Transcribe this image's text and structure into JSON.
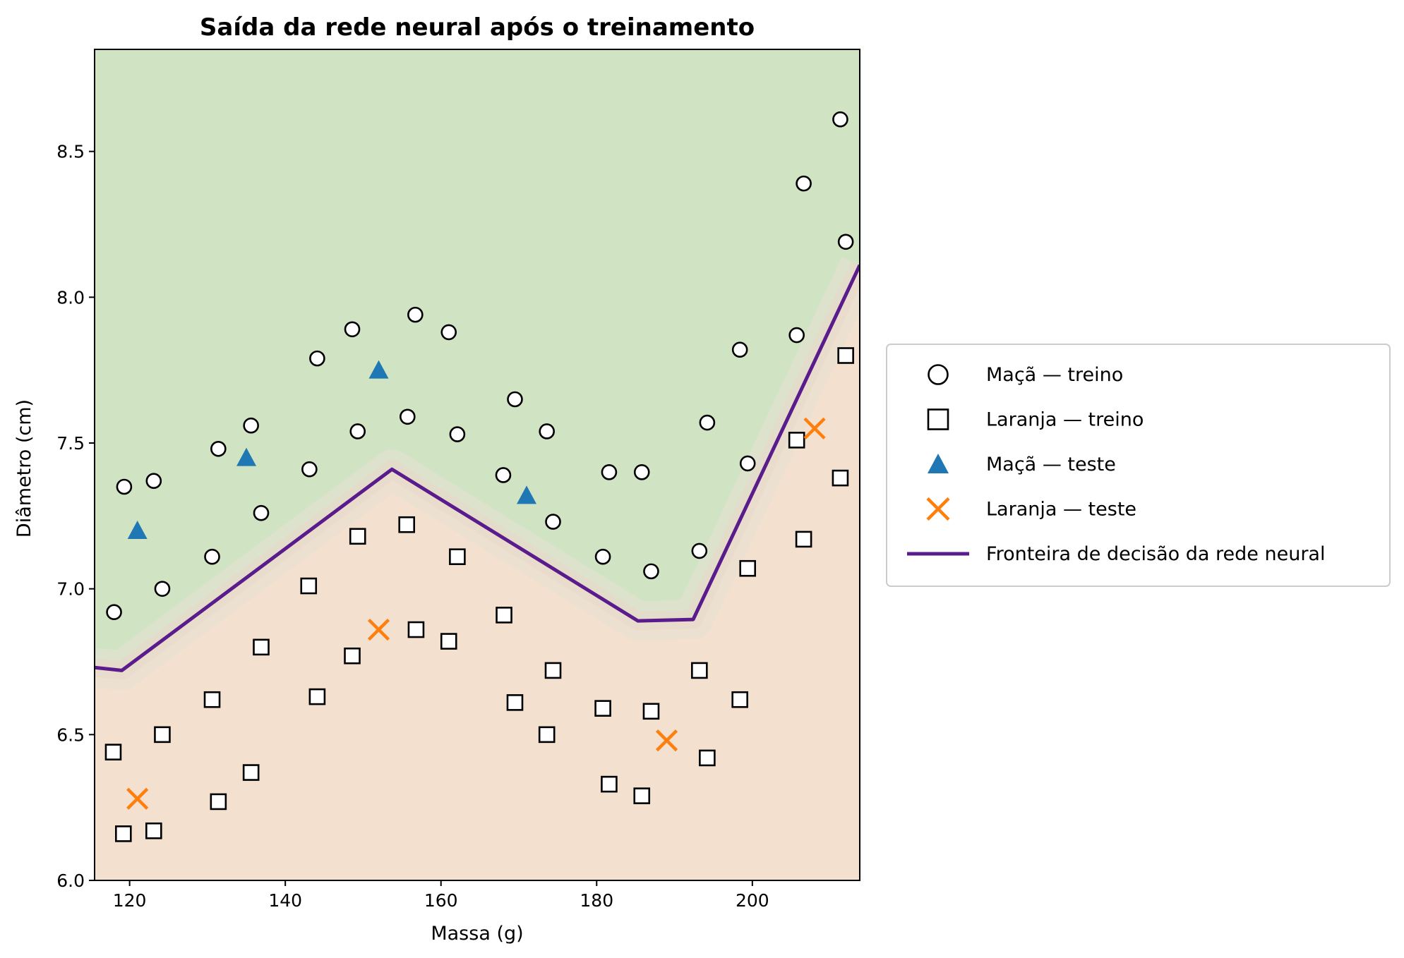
{
  "chart_data": {
    "type": "scatter",
    "title": "Saída da rede neural após o treinamento",
    "xlabel": "Massa (g)",
    "ylabel": "Diâmetro (cm)",
    "xlim": [
      115.5,
      213.8
    ],
    "ylim": [
      6.0,
      8.85
    ],
    "xticks": [
      120,
      140,
      160,
      180,
      200
    ],
    "yticks": [
      6.0,
      6.5,
      7.0,
      7.5,
      8.0,
      8.5
    ],
    "xtick_labels": [
      "120",
      "140",
      "160",
      "180",
      "200"
    ],
    "ytick_labels": [
      "6.0",
      "6.5",
      "7.0",
      "7.5",
      "8.0",
      "8.5"
    ],
    "region_colors": {
      "maca": "#d0e4c4",
      "laranja": "#f3e0cf"
    },
    "legend_position": "center-right-outside",
    "series": [
      {
        "name": "Maçã — treino",
        "marker": "circle",
        "color": "#ffffff",
        "edge": "#000000",
        "points": [
          [
            118.0,
            6.92
          ],
          [
            119.3,
            7.35
          ],
          [
            123.1,
            7.37
          ],
          [
            124.2,
            7.0
          ],
          [
            130.6,
            7.11
          ],
          [
            131.4,
            7.48
          ],
          [
            135.6,
            7.56
          ],
          [
            136.9,
            7.26
          ],
          [
            143.1,
            7.41
          ],
          [
            144.1,
            7.79
          ],
          [
            148.6,
            7.89
          ],
          [
            149.3,
            7.54
          ],
          [
            155.7,
            7.59
          ],
          [
            156.7,
            7.94
          ],
          [
            161.0,
            7.88
          ],
          [
            162.1,
            7.53
          ],
          [
            168.0,
            7.39
          ],
          [
            169.5,
            7.65
          ],
          [
            173.6,
            7.54
          ],
          [
            174.4,
            7.23
          ],
          [
            180.8,
            7.11
          ],
          [
            181.6,
            7.4
          ],
          [
            185.8,
            7.4
          ],
          [
            187.0,
            7.06
          ],
          [
            193.2,
            7.13
          ],
          [
            194.2,
            7.57
          ],
          [
            198.4,
            7.82
          ],
          [
            199.4,
            7.43
          ],
          [
            205.7,
            7.87
          ],
          [
            206.6,
            8.39
          ],
          [
            211.3,
            8.61
          ],
          [
            212.0,
            8.19
          ]
        ]
      },
      {
        "name": "Laranja — treino",
        "marker": "square",
        "color": "#ffffff",
        "edge": "#000000",
        "points": [
          [
            117.9,
            6.44
          ],
          [
            119.2,
            6.16
          ],
          [
            123.1,
            6.17
          ],
          [
            124.2,
            6.5
          ],
          [
            130.6,
            6.62
          ],
          [
            131.4,
            6.27
          ],
          [
            135.6,
            6.37
          ],
          [
            136.9,
            6.8
          ],
          [
            143.0,
            7.01
          ],
          [
            144.1,
            6.63
          ],
          [
            148.6,
            6.77
          ],
          [
            149.3,
            7.18
          ],
          [
            155.6,
            7.22
          ],
          [
            156.8,
            6.86
          ],
          [
            161.0,
            6.82
          ],
          [
            162.1,
            7.11
          ],
          [
            168.1,
            6.91
          ],
          [
            169.5,
            6.61
          ],
          [
            173.6,
            6.5
          ],
          [
            174.4,
            6.72
          ],
          [
            180.8,
            6.59
          ],
          [
            181.6,
            6.33
          ],
          [
            185.8,
            6.29
          ],
          [
            187.0,
            6.58
          ],
          [
            193.2,
            6.72
          ],
          [
            194.2,
            6.42
          ],
          [
            198.4,
            6.62
          ],
          [
            199.4,
            7.07
          ],
          [
            205.7,
            7.51
          ],
          [
            206.6,
            7.17
          ],
          [
            211.3,
            7.38
          ],
          [
            212.0,
            7.8
          ]
        ]
      },
      {
        "name": "Maçã — teste",
        "marker": "triangle",
        "color": "#1f77b4",
        "points": [
          [
            121.0,
            7.2
          ],
          [
            135.0,
            7.45
          ],
          [
            152.0,
            7.75
          ],
          [
            171.0,
            7.32
          ]
        ]
      },
      {
        "name": "Laranja — teste",
        "marker": "x",
        "color": "#ff7f0e",
        "points": [
          [
            121.0,
            6.28
          ],
          [
            152.0,
            6.86
          ],
          [
            189.0,
            6.48
          ],
          [
            208.0,
            7.55
          ]
        ]
      }
    ],
    "boundary": {
      "name": "Fronteira de decisão da rede neural",
      "color": "#5a1c8c",
      "points": [
        [
          115.5,
          6.73
        ],
        [
          119.0,
          6.72
        ],
        [
          153.7,
          7.41
        ],
        [
          185.3,
          6.89
        ],
        [
          192.4,
          6.895
        ],
        [
          213.8,
          8.11
        ]
      ]
    }
  }
}
